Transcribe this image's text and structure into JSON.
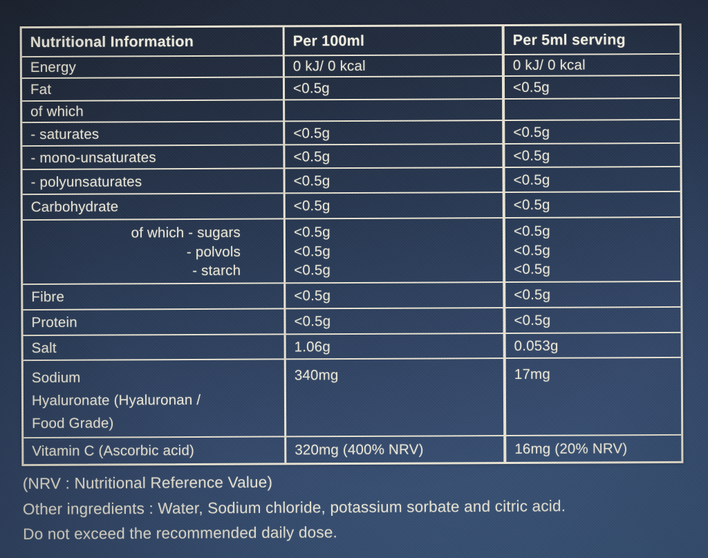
{
  "table": {
    "col_headers": {
      "c1": "Nutritional Information",
      "c2": "Per 100ml",
      "c3": "Per 5ml serving"
    },
    "rows": {
      "energy": {
        "label": "Energy",
        "per_100ml": "0 kJ/ 0 kcal",
        "per_5ml": "0 kJ/ 0 kcal"
      },
      "fat": {
        "label": "Fat",
        "per_100ml": "<0.5g",
        "per_5ml": "<0.5g"
      },
      "of_which": {
        "label": "of which",
        "per_100ml": "",
        "per_5ml": ""
      },
      "saturates": {
        "label": "- saturates",
        "per_100ml": "<0.5g",
        "per_5ml": "<0.5g"
      },
      "mono_unsaturates": {
        "label": "- mono-unsaturates",
        "per_100ml": "<0.5g",
        "per_5ml": "<0.5g"
      },
      "polyunsaturates": {
        "label": "- polyunsaturates",
        "per_100ml": "<0.5g",
        "per_5ml": "<0.5g"
      },
      "carbohydrate": {
        "label": "Carbohydrate",
        "per_100ml": "<0.5g",
        "per_5ml": "<0.5g"
      },
      "sugars_block": {
        "label_lines": [
          "of which - sugars",
          "- polvols",
          "- starch"
        ],
        "per_100ml_lines": [
          "<0.5g",
          "<0.5g",
          "<0.5g"
        ],
        "per_5ml_lines": [
          "<0.5g",
          "<0.5g",
          "<0.5g"
        ]
      },
      "fibre": {
        "label": "Fibre",
        "per_100ml": "<0.5g",
        "per_5ml": "<0.5g"
      },
      "protein": {
        "label": "Protein",
        "per_100ml": "<0.5g",
        "per_5ml": "<0.5g"
      },
      "salt": {
        "label": "Salt",
        "per_100ml": "1.06g",
        "per_5ml": "0.053g"
      },
      "sodium_hyaluronate": {
        "label_lines": [
          "Sodium",
          "Hyaluronate (Hyaluronan /",
          "Food Grade)"
        ],
        "per_100ml": "340mg",
        "per_5ml": "17mg"
      },
      "vitamin_c": {
        "label": "Vitamin C (Ascorbic acid)",
        "per_100ml": "320mg (400% NRV)",
        "per_5ml": "16mg (20% NRV)"
      }
    }
  },
  "footer": {
    "nrv_note": "(NRV : Nutritional Reference Value)",
    "other_ingredients": "Other ingredients : Water, Sodium chloride, potassium sorbate and citric acid.",
    "warning": "Do not exceed the recommended daily dose."
  },
  "colors": {
    "background_top": "#1f2735",
    "background_bottom": "#3d5a80",
    "table_line": "#ebe6d5",
    "text_cream": "#eeeadb"
  }
}
